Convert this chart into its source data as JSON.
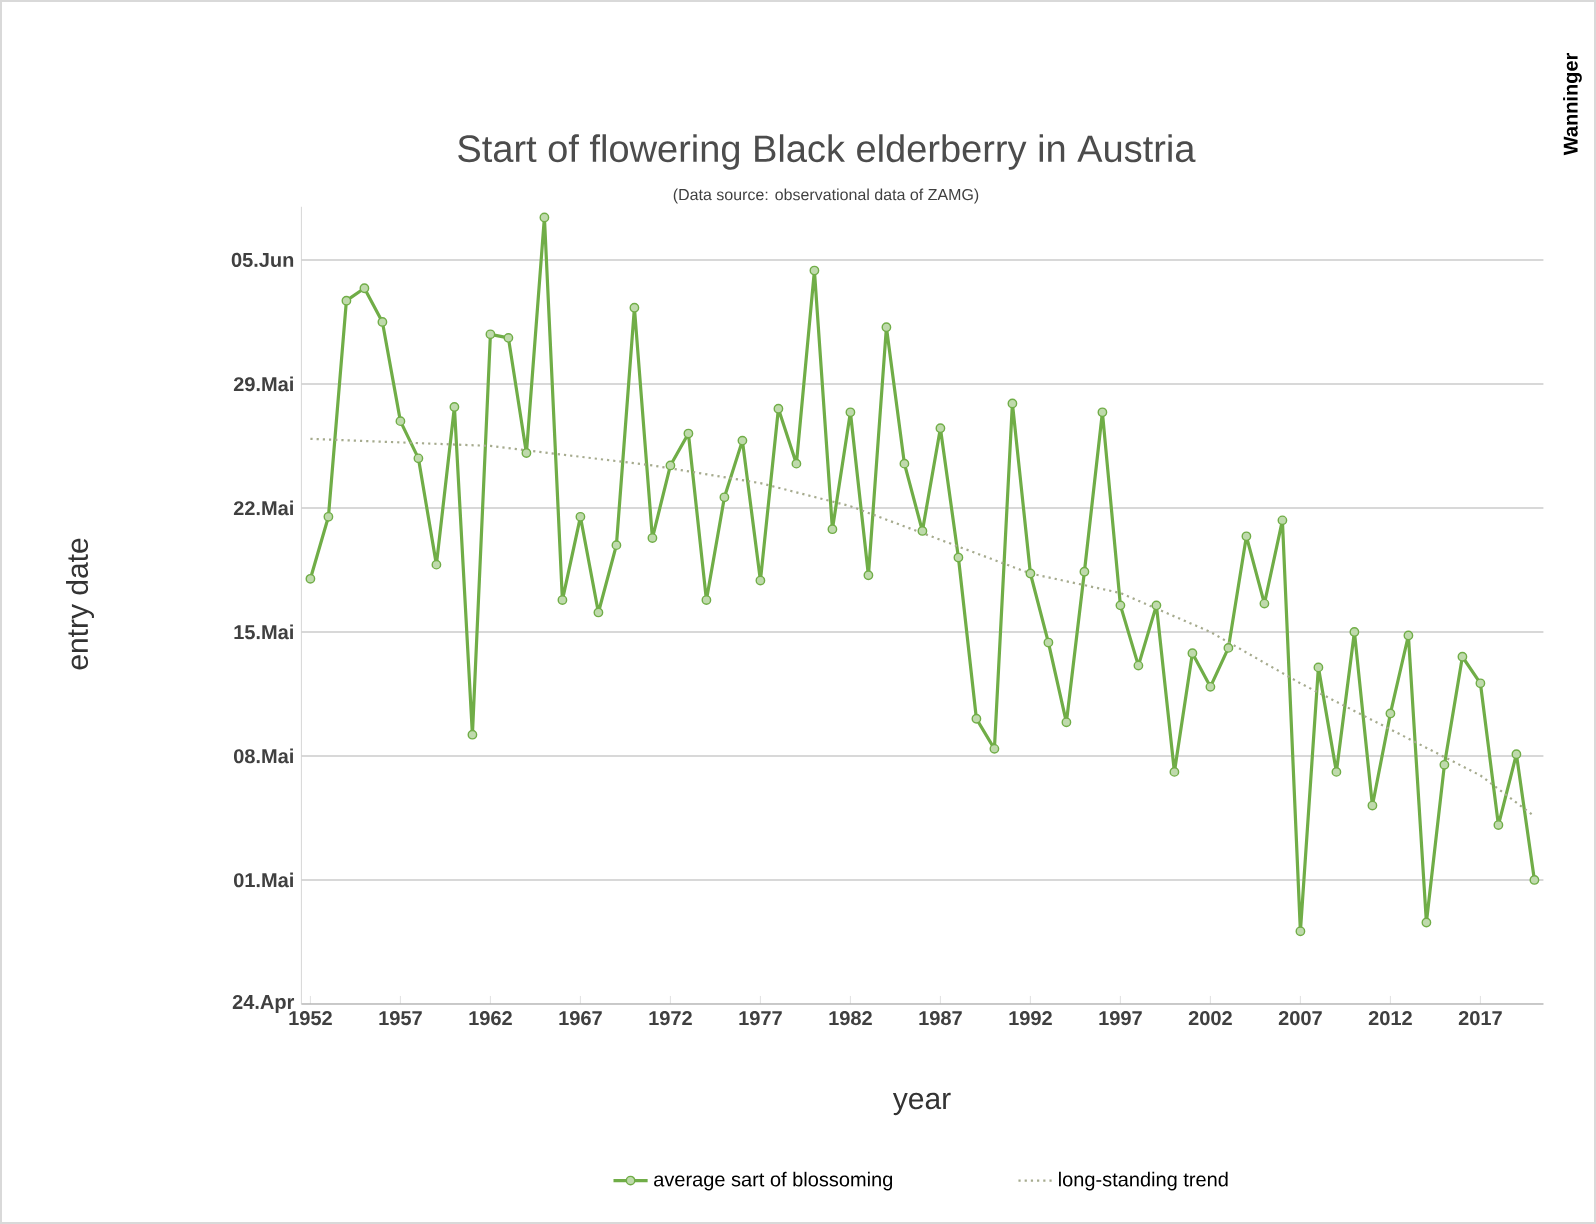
{
  "chart_data": {
    "type": "line",
    "title": "Start of flowering Black elderberry in Austria",
    "subtitle": "(Data source: observational data of ZAMG)",
    "xlabel": "year",
    "ylabel": "entry date",
    "annotations": [
      "Wanninger"
    ],
    "x": [
      1952,
      1953,
      1954,
      1955,
      1956,
      1957,
      1958,
      1959,
      1960,
      1961,
      1962,
      1963,
      1964,
      1965,
      1966,
      1967,
      1968,
      1969,
      1970,
      1971,
      1972,
      1973,
      1974,
      1975,
      1976,
      1977,
      1978,
      1979,
      1980,
      1981,
      1982,
      1983,
      1984,
      1985,
      1986,
      1987,
      1988,
      1989,
      1990,
      1991,
      1992,
      1993,
      1994,
      1995,
      1996,
      1997,
      1998,
      1999,
      2000,
      2001,
      2002,
      2003,
      2004,
      2005,
      2006,
      2007,
      2008,
      2009,
      2010,
      2011,
      2012,
      2013,
      2014,
      2015,
      2016,
      2017,
      2018,
      2019,
      2020
    ],
    "series": [
      {
        "name": "average sart of blossoming",
        "color": "#70ad47",
        "marker": "circle",
        "line_style": "solid",
        "values": [
          18,
          21.5,
          33.7,
          34.4,
          32.5,
          26.9,
          24.8,
          18.8,
          27.7,
          9.2,
          31.8,
          31.6,
          25.1,
          38.4,
          16.8,
          21.5,
          16.1,
          19.9,
          33.3,
          20.3,
          24.4,
          26.2,
          16.8,
          22.6,
          25.8,
          17.9,
          27.6,
          24.5,
          35.4,
          20.8,
          27.4,
          18.2,
          32.2,
          24.5,
          20.7,
          26.5,
          19.2,
          10.1,
          8.4,
          27.9,
          18.3,
          14.4,
          9.9,
          18.4,
          27.4,
          16.5,
          13.1,
          16.5,
          7.1,
          13.8,
          11.9,
          14.1,
          20.4,
          16.6,
          21.3,
          -1.9,
          13,
          7.1,
          15,
          5.2,
          10.4,
          14.8,
          -1.4,
          7.5,
          13.6,
          12.1,
          4.1,
          8.1,
          1
        ]
      },
      {
        "name": "long-standing trend",
        "color": "#a6ab8e",
        "marker": "none",
        "line_style": "dotted",
        "x": [
          1952,
          1962,
          1971,
          1977,
          1982,
          1987,
          1992,
          1997,
          2002,
          2007,
          2012,
          2017,
          2020
        ],
        "values": [
          25.9,
          25.5,
          24.4,
          23.4,
          22.1,
          20.2,
          18.3,
          17.2,
          15,
          12.1,
          9.5,
          6.9,
          4.6
        ]
      }
    ],
    "xlim": [
      1951.5,
      2020.5
    ],
    "xticks": [
      1952,
      1957,
      1962,
      1967,
      1972,
      1977,
      1982,
      1987,
      1992,
      1997,
      2002,
      2007,
      2012,
      2017
    ],
    "ylim": [
      -6,
      39
    ],
    "yticks": [
      {
        "value": -6,
        "label": "24.Apr"
      },
      {
        "value": 1,
        "label": "01.Mai"
      },
      {
        "value": 8,
        "label": "08.Mai"
      },
      {
        "value": 15,
        "label": "15.Mai"
      },
      {
        "value": 22,
        "label": "22.Mai"
      },
      {
        "value": 29,
        "label": "29.Mai"
      },
      {
        "value": 36,
        "label": "05.Jun"
      }
    ],
    "grid": "y",
    "legend": "bottom"
  }
}
